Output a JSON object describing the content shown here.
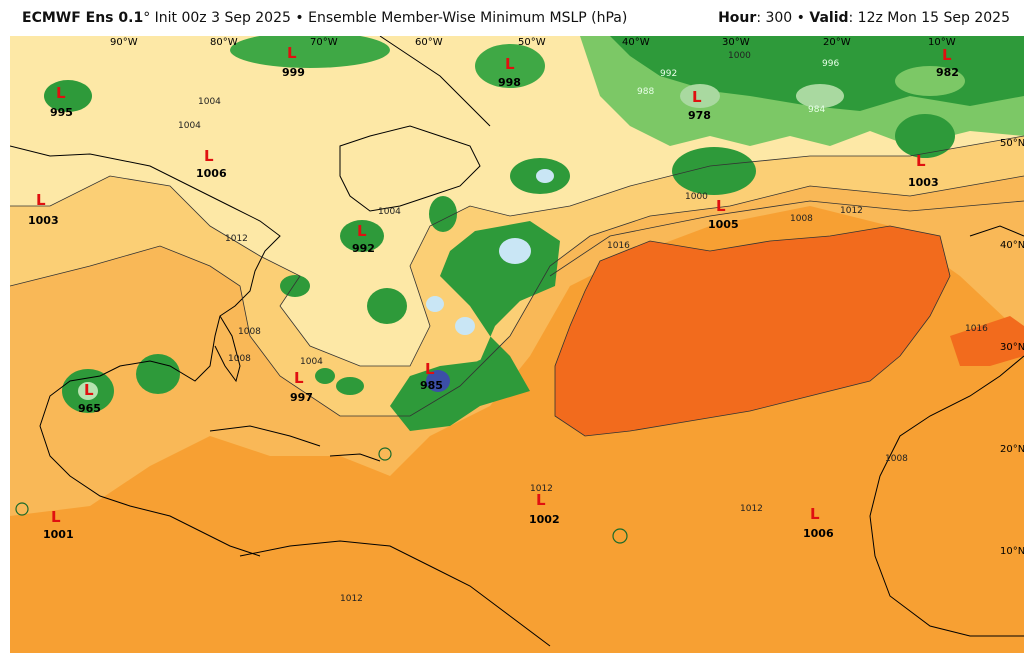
{
  "header": {
    "model": "ECMWF Ens 0.1",
    "degree": "°",
    "init": "Init 00z 3 Sep 2025",
    "sep": "•",
    "product": "Ensemble Member-Wise Minimum MSLP (hPa)",
    "hour_label": "Hour",
    "hour_value": ": 300",
    "valid_label": "Valid",
    "valid_value": ": 12z Mon 15 Sep 2025"
  },
  "colors": {
    "background": "#f2a33a",
    "deep_orange": "#f7931e",
    "light_orange": "#f9c063",
    "pale_yellow": "#fbe9a6",
    "high_red": "#f06a1c",
    "green_light": "#5fbf4a",
    "green_dark": "#1a8a2a",
    "low_marker": "#e01010"
  },
  "lows": [
    {
      "label": "L",
      "value": "999"
    },
    {
      "label": "L",
      "value": "998"
    },
    {
      "label": "L",
      "value": "995"
    },
    {
      "label": "L",
      "value": "1006"
    },
    {
      "label": "L",
      "value": "1003"
    },
    {
      "label": "L",
      "value": "992"
    },
    {
      "label": "L",
      "value": "978"
    },
    {
      "label": "L",
      "value": "982"
    },
    {
      "label": "L",
      "value": "1003"
    },
    {
      "label": "L",
      "value": "1005"
    },
    {
      "label": "L",
      "value": "965"
    },
    {
      "label": "L",
      "value": "997"
    },
    {
      "label": "L",
      "value": "1001"
    },
    {
      "label": "L",
      "value": "1002"
    },
    {
      "label": "L",
      "value": "1006"
    },
    {
      "label": "L",
      "value": "985"
    }
  ],
  "coords": {
    "lon": [
      "90°W",
      "80°W",
      "70°W",
      "60°W",
      "50°W",
      "40°W",
      "30°W",
      "20°W",
      "10°W"
    ],
    "lat": [
      "50°N",
      "40°N",
      "30°N",
      "20°N",
      "10°N"
    ]
  },
  "isobars": [
    "1004",
    "1004",
    "1008",
    "1012",
    "1016",
    "1000",
    "1008",
    "1012",
    "1004",
    "1012",
    "1008",
    "1016",
    "1012",
    "1000",
    "996",
    "992",
    "988",
    "984",
    "1004",
    "1008",
    "1012"
  ]
}
